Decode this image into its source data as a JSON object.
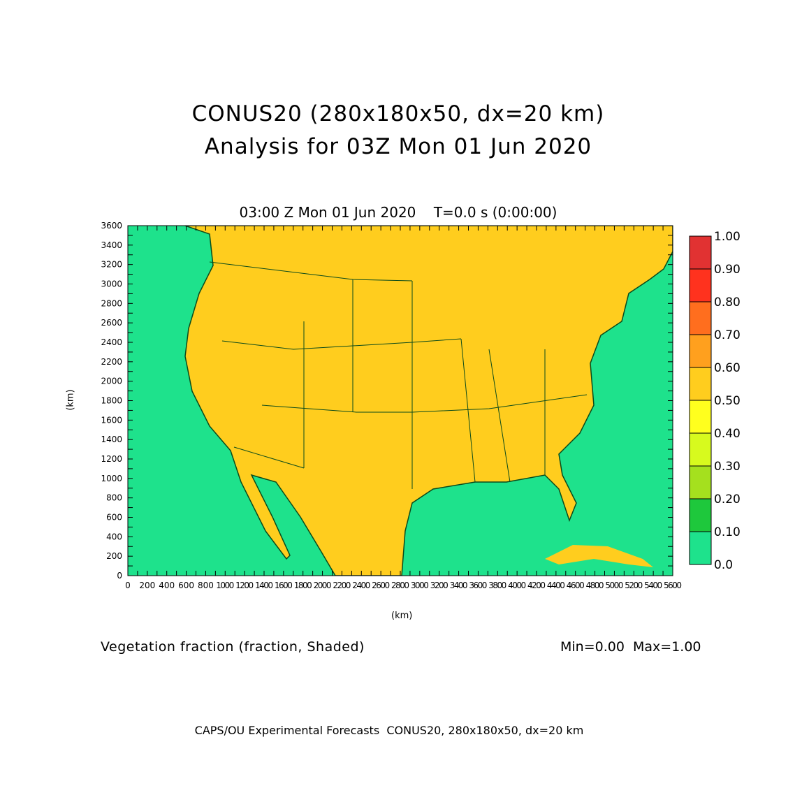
{
  "title": {
    "line1": "CONUS20 (280x180x50, dx=20 km)",
    "line2": "Analysis for 03Z Mon 01 Jun 2020"
  },
  "subtitle": "03:00 Z Mon 01 Jun 2020    T=0.0 s (0:00:00)",
  "variable_label": "Vegetation fraction (fraction, Shaded)",
  "min_max": "Min=0.00  Max=1.00",
  "credits": "CAPS/OU Experimental Forecasts  CONUS20, 280x180x50, dx=20 km",
  "chart_data": {
    "type": "heatmap",
    "title": "Vegetation fraction (fraction, Shaded)",
    "xlabel": "(km)",
    "ylabel": "(km)",
    "xlim": [
      0,
      5600
    ],
    "ylim": [
      0,
      3600
    ],
    "x_ticks": [
      "0",
      "200",
      "400",
      "600",
      "800",
      "1000",
      "1200",
      "1400",
      "1600",
      "1800",
      "2000",
      "2200",
      "2400",
      "2600",
      "2800",
      "3000",
      "3200",
      "3400",
      "3600",
      "3800",
      "4000",
      "4200",
      "4400",
      "4600",
      "4800",
      "5000",
      "5200",
      "5400",
      "5600"
    ],
    "y_ticks": [
      "0",
      "200",
      "400",
      "600",
      "800",
      "1000",
      "1200",
      "1400",
      "1600",
      "1800",
      "2000",
      "2200",
      "2400",
      "2600",
      "2800",
      "3000",
      "3200",
      "3400",
      "3600"
    ],
    "min": 0.0,
    "max": 1.0,
    "colorbar": {
      "labels": [
        "0.0",
        "0.10",
        "0.20",
        "0.30",
        "0.40",
        "0.50",
        "0.60",
        "0.70",
        "0.80",
        "0.90",
        "1.00"
      ],
      "colors": [
        "#1ee28c",
        "#1ec83c",
        "#a5e01e",
        "#d7fa1e",
        "#ffff1e",
        "#ffcd1e",
        "#ffa01e",
        "#ff6e1e",
        "#ff321e",
        "#e13232"
      ]
    }
  }
}
